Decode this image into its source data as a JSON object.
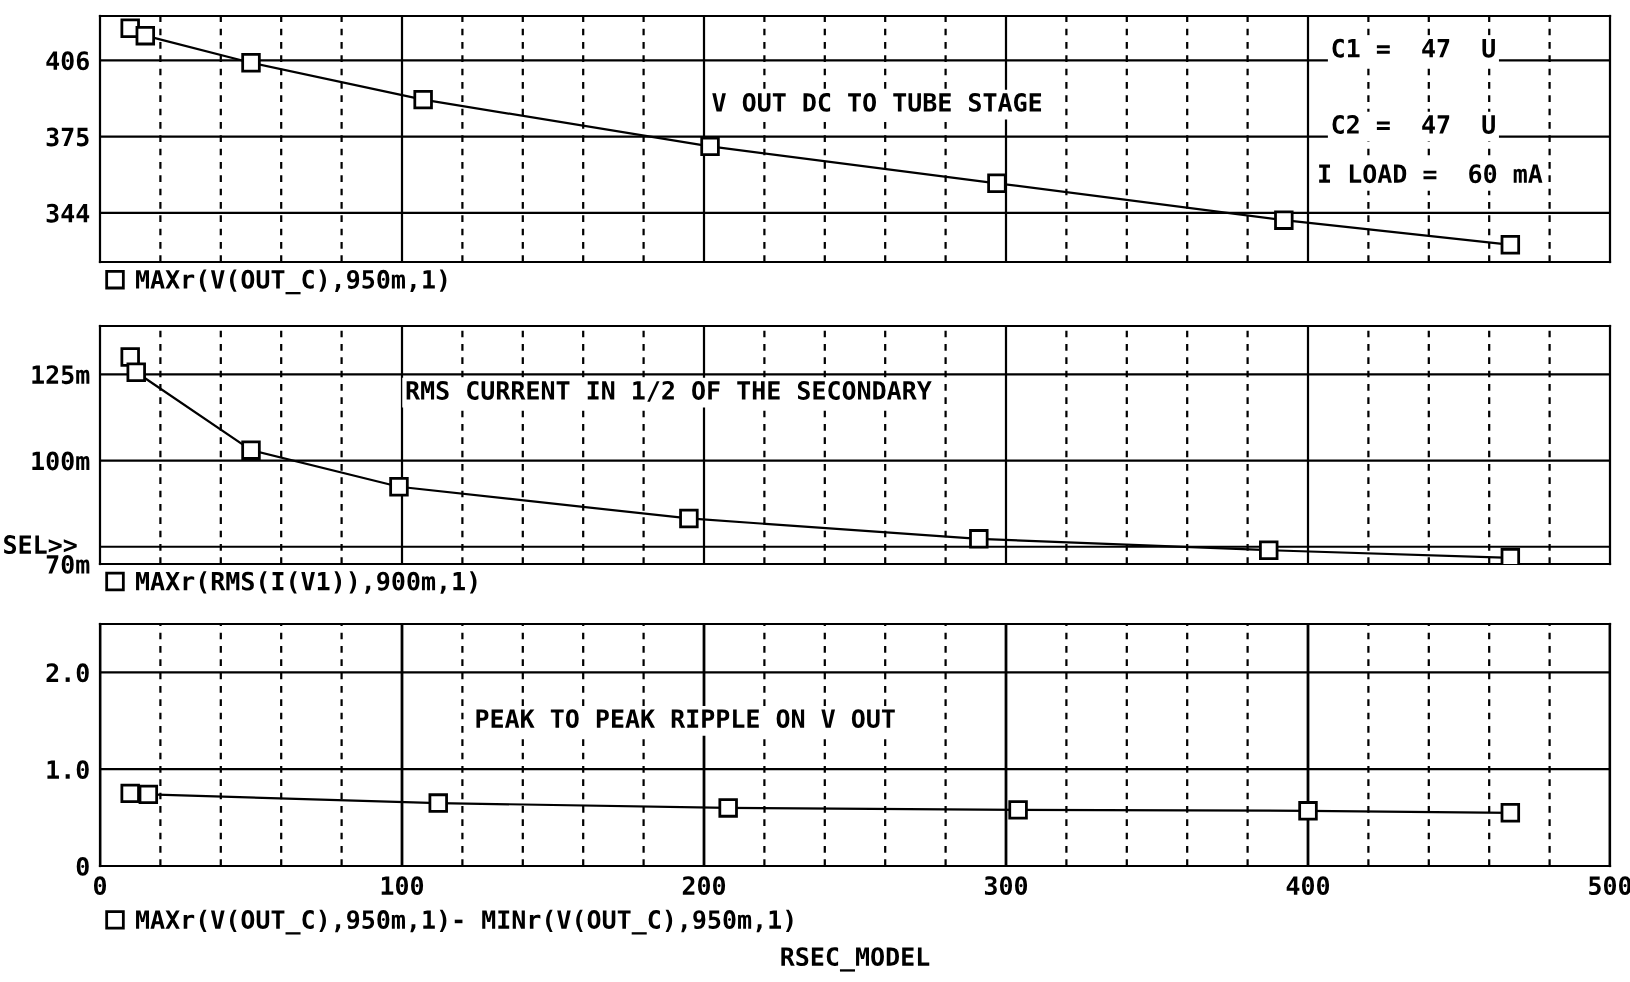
{
  "chart_data": [
    {
      "type": "line",
      "marker": "square",
      "grid": true,
      "legend": "bottom",
      "tick_labels": "y",
      "xlim": [
        0,
        500
      ],
      "xticks": [
        {
          "value": 20,
          "label": null
        },
        {
          "value": 40,
          "label": null
        },
        {
          "value": 60,
          "label": null
        },
        {
          "value": 80,
          "label": null
        },
        {
          "value": 100,
          "label": null
        },
        {
          "value": 120,
          "label": null
        },
        {
          "value": 140,
          "label": null
        },
        {
          "value": 160,
          "label": null
        },
        {
          "value": 180,
          "label": null
        },
        {
          "value": 200,
          "label": null
        },
        {
          "value": 220,
          "label": null
        },
        {
          "value": 240,
          "label": null
        },
        {
          "value": 260,
          "label": null
        },
        {
          "value": 280,
          "label": null
        },
        {
          "value": 300,
          "label": null
        },
        {
          "value": 320,
          "label": null
        },
        {
          "value": 340,
          "label": null
        },
        {
          "value": 360,
          "label": null
        },
        {
          "value": 380,
          "label": null
        },
        {
          "value": 400,
          "label": null
        },
        {
          "value": 420,
          "label": null
        },
        {
          "value": 440,
          "label": null
        },
        {
          "value": 460,
          "label": null
        },
        {
          "value": 480,
          "label": null
        }
      ],
      "ylim": [
        324,
        424
      ],
      "yticks": [
        344,
        375,
        406
      ],
      "annotations": [
        "V OUT DC TO TUBE STAGE",
        "C1 =  47  U",
        "C2 =  47  U",
        "I LOAD =  60 mA"
      ],
      "series": [
        {
          "name": "MAXr(V(OUT_C),950m,1)",
          "color": "#000000",
          "x": [
            10,
            15,
            50,
            107,
            202,
            297,
            392,
            467
          ],
          "values": [
            419,
            416,
            405,
            390,
            371,
            356,
            341,
            331
          ]
        }
      ]
    },
    {
      "type": "line",
      "marker": "square",
      "grid": true,
      "legend": "bottom",
      "tick_labels": "y",
      "xlim": [
        0,
        500
      ],
      "xticks": [
        {
          "value": 20,
          "label": null
        },
        {
          "value": 40,
          "label": null
        },
        {
          "value": 60,
          "label": null
        },
        {
          "value": 80,
          "label": null
        },
        {
          "value": 100,
          "label": null
        },
        {
          "value": 120,
          "label": null
        },
        {
          "value": 140,
          "label": null
        },
        {
          "value": 160,
          "label": null
        },
        {
          "value": 180,
          "label": null
        },
        {
          "value": 200,
          "label": null
        },
        {
          "value": 220,
          "label": null
        },
        {
          "value": 240,
          "label": null
        },
        {
          "value": 260,
          "label": null
        },
        {
          "value": 280,
          "label": null
        },
        {
          "value": 300,
          "label": null
        },
        {
          "value": 320,
          "label": null
        },
        {
          "value": 340,
          "label": null
        },
        {
          "value": 360,
          "label": null
        },
        {
          "value": 380,
          "label": null
        },
        {
          "value": 400,
          "label": null
        },
        {
          "value": 420,
          "label": null
        },
        {
          "value": 440,
          "label": null
        },
        {
          "value": 460,
          "label": null
        },
        {
          "value": 480,
          "label": null
        }
      ],
      "ylim": [
        70,
        139
      ],
      "yticks": [
        {
          "value": 70,
          "label": "70m"
        },
        {
          "value": 100,
          "label": "100m"
        },
        {
          "value": 125,
          "label": "125m"
        }
      ],
      "ref_lines": [
        {
          "axis": "y",
          "value": 75,
          "label": "SEL>>"
        }
      ],
      "annotations": [
        "RMS CURRENT IN 1/2 OF THE SECONDARY"
      ],
      "series": [
        {
          "name": "MAXr(RMS(I(V1)),900m,1)",
          "color": "#000000",
          "x": [
            10,
            12,
            50,
            99,
            195,
            291,
            387,
            467
          ],
          "values": [
            130,
            125.6,
            103,
            92.4,
            83.2,
            77.3,
            74,
            71.8
          ]
        }
      ]
    },
    {
      "type": "line",
      "marker": "square",
      "grid": true,
      "legend": "bottom",
      "xlabel": "RSEC_MODEL",
      "xlim": [
        0,
        500
      ],
      "xticks": [
        0,
        {
          "value": 20,
          "label": null
        },
        {
          "value": 40,
          "label": null
        },
        {
          "value": 60,
          "label": null
        },
        {
          "value": 80,
          "label": null
        },
        100,
        {
          "value": 120,
          "label": null
        },
        {
          "value": 140,
          "label": null
        },
        {
          "value": 160,
          "label": null
        },
        {
          "value": 180,
          "label": null
        },
        200,
        {
          "value": 220,
          "label": null
        },
        {
          "value": 240,
          "label": null
        },
        {
          "value": 260,
          "label": null
        },
        {
          "value": 280,
          "label": null
        },
        300,
        {
          "value": 320,
          "label": null
        },
        {
          "value": 340,
          "label": null
        },
        {
          "value": 360,
          "label": null
        },
        {
          "value": 380,
          "label": null
        },
        400,
        {
          "value": 420,
          "label": null
        },
        {
          "value": 440,
          "label": null
        },
        {
          "value": 460,
          "label": null
        },
        {
          "value": 480,
          "label": null
        },
        500
      ],
      "ylim": [
        0,
        2.5
      ],
      "yticks": [
        0,
        {
          "value": 1.0,
          "label": "1.0"
        },
        {
          "value": 2.0,
          "label": "2.0"
        }
      ],
      "annotations": [
        "PEAK TO PEAK RIPPLE ON V OUT"
      ],
      "series": [
        {
          "name": "MAXr(V(OUT_C),950m,1)- MINr(V(OUT_C),950m,1)",
          "color": "#000000",
          "x": [
            10,
            16,
            112,
            208,
            304,
            400,
            467
          ],
          "values": [
            0.75,
            0.74,
            0.65,
            0.6,
            0.58,
            0.57,
            0.55
          ]
        }
      ]
    }
  ]
}
